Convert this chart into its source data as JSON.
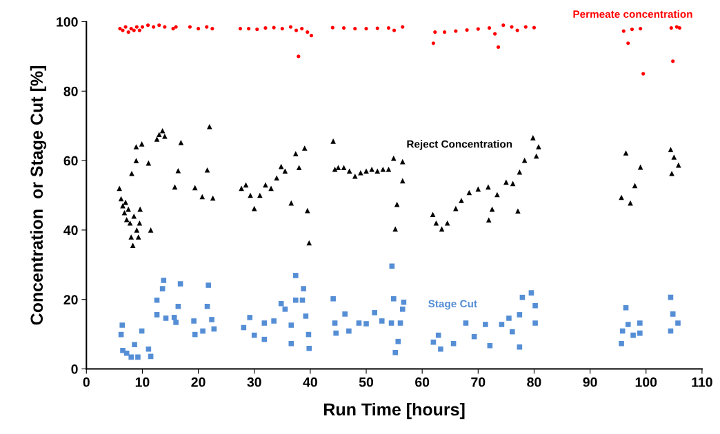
{
  "chart_data": {
    "type": "scatter",
    "xlabel": "Run Time [hours]",
    "ylabel": "Concentration  or Stage Cut [%]",
    "xlim": [
      0,
      110
    ],
    "xticks": [
      0,
      10,
      20,
      30,
      40,
      50,
      60,
      70,
      80,
      90,
      100,
      110
    ],
    "ylim": [
      0,
      100
    ],
    "yticks": [
      0,
      20,
      40,
      60,
      80,
      100
    ],
    "grid": false,
    "legend": false,
    "series": [
      {
        "name": "Permeate concentration",
        "color": "#ff0000",
        "marker": "circle",
        "x": [
          6,
          6.5,
          7,
          7.5,
          8,
          8.5,
          9,
          9.5,
          10,
          11,
          12,
          13,
          14,
          15.5,
          16,
          18.5,
          20,
          21.5,
          22.5,
          27.5,
          29,
          30.5,
          32,
          33.5,
          35,
          36.5,
          37.5,
          37.9,
          38.5,
          39.5,
          40.2,
          44,
          46,
          48,
          50,
          52,
          54,
          55,
          56.5,
          62,
          62.3,
          64,
          66,
          68,
          70,
          72,
          73,
          73.6,
          74.5,
          76,
          77,
          78.5,
          80,
          96,
          96.8,
          97.5,
          99,
          99.5,
          104.5,
          104.8,
          105.5,
          106
        ],
        "values": [
          98,
          97.5,
          98.5,
          97,
          98,
          97.5,
          98.5,
          97.5,
          98.5,
          99,
          98.5,
          99,
          98.5,
          98,
          98.5,
          98.5,
          98,
          98.5,
          98,
          98,
          98,
          97.8,
          98.2,
          98.3,
          98,
          98.5,
          97.5,
          90,
          98,
          97,
          96,
          98.3,
          98.2,
          98,
          98,
          98.1,
          98.2,
          97.5,
          98.5,
          93.8,
          97,
          97,
          97.3,
          97.6,
          97.9,
          98.2,
          96.5,
          92.7,
          99,
          98.5,
          97.5,
          98.5,
          98.3,
          97.3,
          93.8,
          97.8,
          98,
          85,
          98.2,
          88.6,
          98.5,
          98.2
        ]
      },
      {
        "name": "Reject Concentration",
        "color": "#000000",
        "marker": "triangle",
        "x": [
          5.9,
          6.2,
          6.5,
          6.8,
          7,
          7.2,
          7.5,
          7.8,
          8,
          8.1,
          8.3,
          8.5,
          8.9,
          8.9,
          9,
          9.3,
          9.5,
          9.6,
          9.9,
          11.1,
          11.5,
          12.6,
          13,
          13.6,
          14,
          15.8,
          16.4,
          16.9,
          19.4,
          20.7,
          21.6,
          22,
          22.6,
          27.7,
          28.5,
          29.3,
          30,
          31,
          32,
          33,
          34,
          34.8,
          35.5,
          36.6,
          37.4,
          38,
          39,
          39.5,
          39.8,
          44.1,
          44.4,
          45,
          46,
          47,
          48,
          49,
          50,
          51,
          52,
          53,
          54,
          54.9,
          55.2,
          55.5,
          56.5,
          56.5,
          61.9,
          62.5,
          63.5,
          64.5,
          66,
          67,
          68.4,
          70,
          71.8,
          71.9,
          72.5,
          73.4,
          75,
          76.2,
          77.1,
          77.4,
          78.3,
          79.8,
          80.4,
          80.8,
          95.6,
          96.4,
          97.2,
          98,
          99,
          104.4,
          104.6,
          105,
          105.8
        ],
        "values": [
          52,
          49,
          47,
          45,
          48,
          43,
          46,
          42,
          38,
          56.3,
          35.6,
          44,
          64,
          60,
          40,
          38,
          42,
          46,
          64.8,
          59.3,
          40,
          66.2,
          67.5,
          68.6,
          67,
          52.4,
          57.1,
          65.2,
          52.2,
          49.6,
          57.3,
          69.8,
          49.2,
          52,
          53,
          50,
          46.2,
          50,
          53,
          52,
          55,
          58.3,
          57,
          47.8,
          62,
          58,
          63.6,
          45.6,
          36.3,
          65.6,
          57.5,
          58,
          58,
          57,
          55.5,
          56.5,
          57,
          57.5,
          57,
          57.5,
          57.5,
          60.7,
          40.3,
          47.4,
          59.7,
          54.2,
          44.5,
          42,
          40.3,
          42,
          46.2,
          48.5,
          50.8,
          51.8,
          52.4,
          42.9,
          46,
          50.2,
          53.8,
          53.4,
          45.5,
          56.7,
          60.1,
          66.6,
          61.3,
          64,
          49.4,
          62.2,
          47.8,
          52.8,
          58.1,
          63.2,
          56.3,
          61,
          58.7
        ]
      },
      {
        "name": "Stage Cut",
        "color": "#558ed5",
        "marker": "square",
        "x": [
          6.2,
          6.4,
          6.5,
          7.2,
          8,
          8.6,
          9.2,
          9.9,
          11.1,
          11.5,
          12.6,
          12.6,
          13.6,
          13.8,
          14.2,
          15.7,
          16,
          16.4,
          16.8,
          19.2,
          19.4,
          20.8,
          21.6,
          21.8,
          22.4,
          22.8,
          28.1,
          29.2,
          30,
          31.8,
          31.8,
          33.5,
          34.8,
          35.5,
          36.6,
          36.6,
          37.4,
          37.4,
          38.6,
          38.8,
          39.2,
          39.7,
          39.8,
          44.1,
          44.4,
          44.6,
          46.2,
          46.9,
          48.7,
          50,
          51.5,
          52.8,
          54.5,
          54.6,
          54.9,
          55.2,
          55.7,
          56.1,
          56.5,
          56.7,
          62,
          62.9,
          63.3,
          65.6,
          67.8,
          69.3,
          71.3,
          72.1,
          74.2,
          75.5,
          76.1,
          77.4,
          77.4,
          77.9,
          79.5,
          80.2,
          80.2,
          95.6,
          95.8,
          96.4,
          96.8,
          97.7,
          98.9,
          98.9,
          104.4,
          104.4,
          104.8,
          105.7
        ],
        "values": [
          9.9,
          12.6,
          5.3,
          4.5,
          3.4,
          7,
          3.4,
          10.9,
          5.7,
          3.6,
          15.6,
          19.8,
          23.1,
          25.5,
          14.6,
          14.8,
          13.4,
          18,
          24.5,
          13.8,
          9.9,
          10.9,
          18,
          24.1,
          14.2,
          11.5,
          11.9,
          14.8,
          9.7,
          8.5,
          13.2,
          13.8,
          18.8,
          17.2,
          12.6,
          7.3,
          26.9,
          19.8,
          19.8,
          23.1,
          15.2,
          9.9,
          5.9,
          20.2,
          13.2,
          10.3,
          15.8,
          10.9,
          13.2,
          13,
          16.2,
          13.8,
          13.2,
          29.6,
          20.2,
          4.7,
          7.9,
          13.2,
          17.2,
          19.2,
          7.7,
          9.7,
          5.7,
          7.3,
          13.2,
          9.3,
          12.8,
          6.7,
          12.8,
          14.6,
          10.7,
          15.6,
          6.3,
          20.6,
          21.9,
          18.2,
          13.2,
          7.3,
          10.9,
          17.6,
          12.8,
          9.7,
          13.2,
          10.3,
          20.6,
          10.9,
          15.8,
          13.2
        ]
      }
    ]
  }
}
